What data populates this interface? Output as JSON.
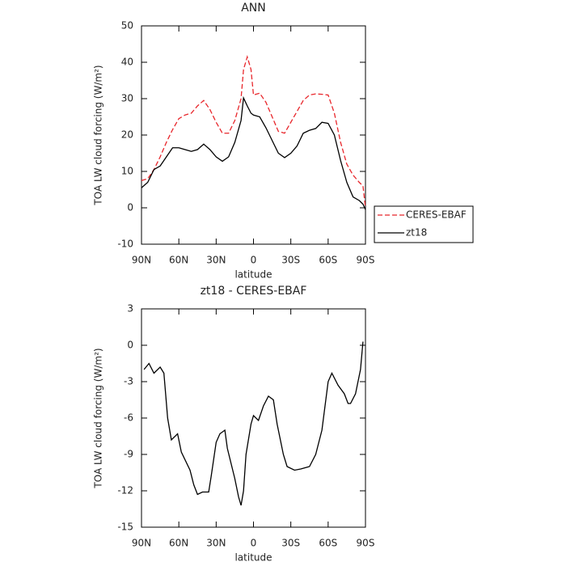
{
  "chart_data": [
    {
      "type": "line",
      "title": "ANN",
      "xlabel": "latitude",
      "ylabel": "TOA LW cloud forcing (W/m²)",
      "x": [
        90,
        85,
        80,
        75,
        70,
        65,
        60,
        55,
        50,
        45,
        40,
        35,
        30,
        25,
        20,
        15,
        10,
        8,
        5,
        2,
        0,
        -5,
        -10,
        -15,
        -20,
        -25,
        -30,
        -35,
        -40,
        -45,
        -50,
        -55,
        -60,
        -65,
        -70,
        -75,
        -80,
        -85,
        -88,
        -90
      ],
      "series": [
        {
          "name": "CERES-EBAF",
          "color": "#e8262b",
          "dashed": true,
          "values": [
            7.5,
            8,
            10.5,
            14,
            18,
            21.5,
            24.5,
            25.5,
            26,
            28,
            29.5,
            27,
            23.5,
            20.5,
            20.5,
            24,
            30,
            38,
            41.5,
            38,
            31,
            31.5,
            29,
            25,
            21,
            20.5,
            23.5,
            26.5,
            29.5,
            31,
            31.3,
            31.2,
            31,
            26,
            18,
            12,
            9,
            7,
            6,
            0
          ]
        },
        {
          "name": "zt18",
          "color": "#000000",
          "dashed": false,
          "values": [
            5.5,
            7,
            10.5,
            11.5,
            14,
            16.5,
            16.5,
            16,
            15.5,
            16,
            17.5,
            16,
            14,
            12.8,
            14,
            18,
            24,
            30.2,
            28,
            26,
            25.5,
            25,
            22,
            18.5,
            15,
            13.8,
            15,
            17,
            20.5,
            21.3,
            21.8,
            23.5,
            23.2,
            20,
            13,
            7,
            3,
            2,
            1,
            -0.5
          ]
        }
      ],
      "xlim": [
        90,
        -90
      ],
      "xticks": [
        {
          "value": 90,
          "label": "90N"
        },
        {
          "value": 60,
          "label": "60N"
        },
        {
          "value": 30,
          "label": "30N"
        },
        0,
        {
          "value": -30,
          "label": "30S"
        },
        {
          "value": -60,
          "label": "60S"
        },
        {
          "value": -90,
          "label": "90S"
        }
      ],
      "ylim": [
        -10,
        50
      ],
      "yticks": [
        -10,
        0,
        10,
        20,
        30,
        40,
        50
      ]
    },
    {
      "type": "line",
      "title": "zt18 - CERES-EBAF",
      "xlabel": "latitude",
      "ylabel": "TOA LW cloud forcing (W/m²)",
      "color": "#000000",
      "x": [
        88,
        84,
        80,
        75,
        72,
        69,
        66,
        61,
        58,
        51,
        48,
        45,
        41,
        36,
        34,
        30,
        27,
        23,
        21,
        15,
        12,
        10,
        8,
        6,
        2,
        0,
        -4,
        -8,
        -12,
        -16,
        -19,
        -24,
        -27,
        -33,
        -38,
        -45,
        -50,
        -55,
        -60,
        -63,
        -68,
        -73,
        -76,
        -78,
        -82,
        -86,
        -88
      ],
      "values": [
        -2,
        -1.5,
        -2.3,
        -1.8,
        -2.3,
        -6,
        -7.8,
        -7.3,
        -8.8,
        -10.3,
        -11.5,
        -12.3,
        -12.1,
        -12.1,
        -10.8,
        -8,
        -7.3,
        -7,
        -8.5,
        -11,
        -12.5,
        -13.2,
        -12,
        -9,
        -6.5,
        -5.8,
        -6.2,
        -5,
        -4.2,
        -4.5,
        -6.5,
        -9,
        -10,
        -10.3,
        -10.2,
        -10,
        -9,
        -7,
        -3,
        -2.3,
        -3.3,
        -4,
        -4.8,
        -4.8,
        -4,
        -2,
        0.3
      ],
      "xlim": [
        90,
        -90
      ],
      "xticks": [
        {
          "value": 90,
          "label": "90N"
        },
        {
          "value": 60,
          "label": "60N"
        },
        {
          "value": 30,
          "label": "30N"
        },
        0,
        {
          "value": -30,
          "label": "30S"
        },
        {
          "value": -60,
          "label": "60S"
        },
        {
          "value": -90,
          "label": "90S"
        }
      ],
      "ylim": [
        -15,
        3
      ],
      "yticks": [
        -15,
        -12,
        -9,
        -6,
        -3,
        0,
        3
      ]
    }
  ]
}
